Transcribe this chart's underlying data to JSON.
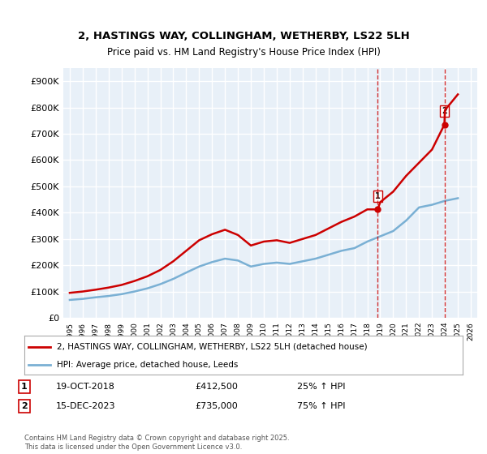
{
  "title_line1": "2, HASTINGS WAY, COLLINGHAM, WETHERBY, LS22 5LH",
  "title_line2": "Price paid vs. HM Land Registry's House Price Index (HPI)",
  "ylim": [
    0,
    950000
  ],
  "yticks": [
    0,
    100000,
    200000,
    300000,
    400000,
    500000,
    600000,
    700000,
    800000,
    900000
  ],
  "ytick_labels": [
    "£0",
    "£100K",
    "£200K",
    "£300K",
    "£400K",
    "£500K",
    "£600K",
    "£700K",
    "£800K",
    "£900K"
  ],
  "xlim_start": 1994.5,
  "xlim_end": 2026.5,
  "xticks": [
    1995,
    1996,
    1997,
    1998,
    1999,
    2000,
    2001,
    2002,
    2003,
    2004,
    2005,
    2006,
    2007,
    2008,
    2009,
    2010,
    2011,
    2012,
    2013,
    2014,
    2015,
    2016,
    2017,
    2018,
    2019,
    2020,
    2021,
    2022,
    2023,
    2024,
    2025,
    2026
  ],
  "background_color": "#ffffff",
  "plot_bg_color": "#e8f0f8",
  "grid_color": "#ffffff",
  "red_line_color": "#cc0000",
  "blue_line_color": "#7ab0d4",
  "sale_marker_color": "#cc0000",
  "vline_color": "#cc0000",
  "vline_style": "--",
  "legend_label_red": "2, HASTINGS WAY, COLLINGHAM, WETHERBY, LS22 5LH (detached house)",
  "legend_label_blue": "HPI: Average price, detached house, Leeds",
  "sale1_year": 2018.8,
  "sale1_price": 412500,
  "sale1_label": "1",
  "sale1_date": "19-OCT-2018",
  "sale1_hpi": "25% ↑ HPI",
  "sale2_year": 2023.96,
  "sale2_price": 735000,
  "sale2_label": "2",
  "sale2_date": "15-DEC-2023",
  "sale2_hpi": "75% ↑ HPI",
  "footer_text": "Contains HM Land Registry data © Crown copyright and database right 2025.\nThis data is licensed under the Open Government Licence v3.0.",
  "hpi_years": [
    1995,
    1996,
    1997,
    1998,
    1999,
    2000,
    2001,
    2002,
    2003,
    2004,
    2005,
    2006,
    2007,
    2008,
    2009,
    2010,
    2011,
    2012,
    2013,
    2014,
    2015,
    2016,
    2017,
    2018,
    2019,
    2020,
    2021,
    2022,
    2023,
    2024,
    2025
  ],
  "hpi_values": [
    68000,
    72000,
    78000,
    83000,
    90000,
    100000,
    112000,
    128000,
    148000,
    172000,
    195000,
    212000,
    225000,
    218000,
    195000,
    205000,
    210000,
    205000,
    215000,
    225000,
    240000,
    255000,
    265000,
    290000,
    310000,
    330000,
    370000,
    420000,
    430000,
    445000,
    455000
  ],
  "price_years": [
    1995,
    1996,
    1997,
    1998,
    1999,
    2000,
    2001,
    2002,
    2003,
    2004,
    2005,
    2006,
    2007,
    2008,
    2009,
    2010,
    2011,
    2012,
    2013,
    2014,
    2015,
    2016,
    2017,
    2018,
    2018.8,
    2019,
    2020,
    2021,
    2022,
    2023,
    2023.96,
    2024,
    2025
  ],
  "price_values": [
    95000,
    100000,
    107000,
    115000,
    125000,
    140000,
    158000,
    182000,
    215000,
    255000,
    295000,
    318000,
    335000,
    315000,
    275000,
    290000,
    295000,
    285000,
    300000,
    315000,
    340000,
    365000,
    385000,
    412500,
    412500,
    440000,
    480000,
    540000,
    590000,
    640000,
    735000,
    790000,
    850000
  ]
}
